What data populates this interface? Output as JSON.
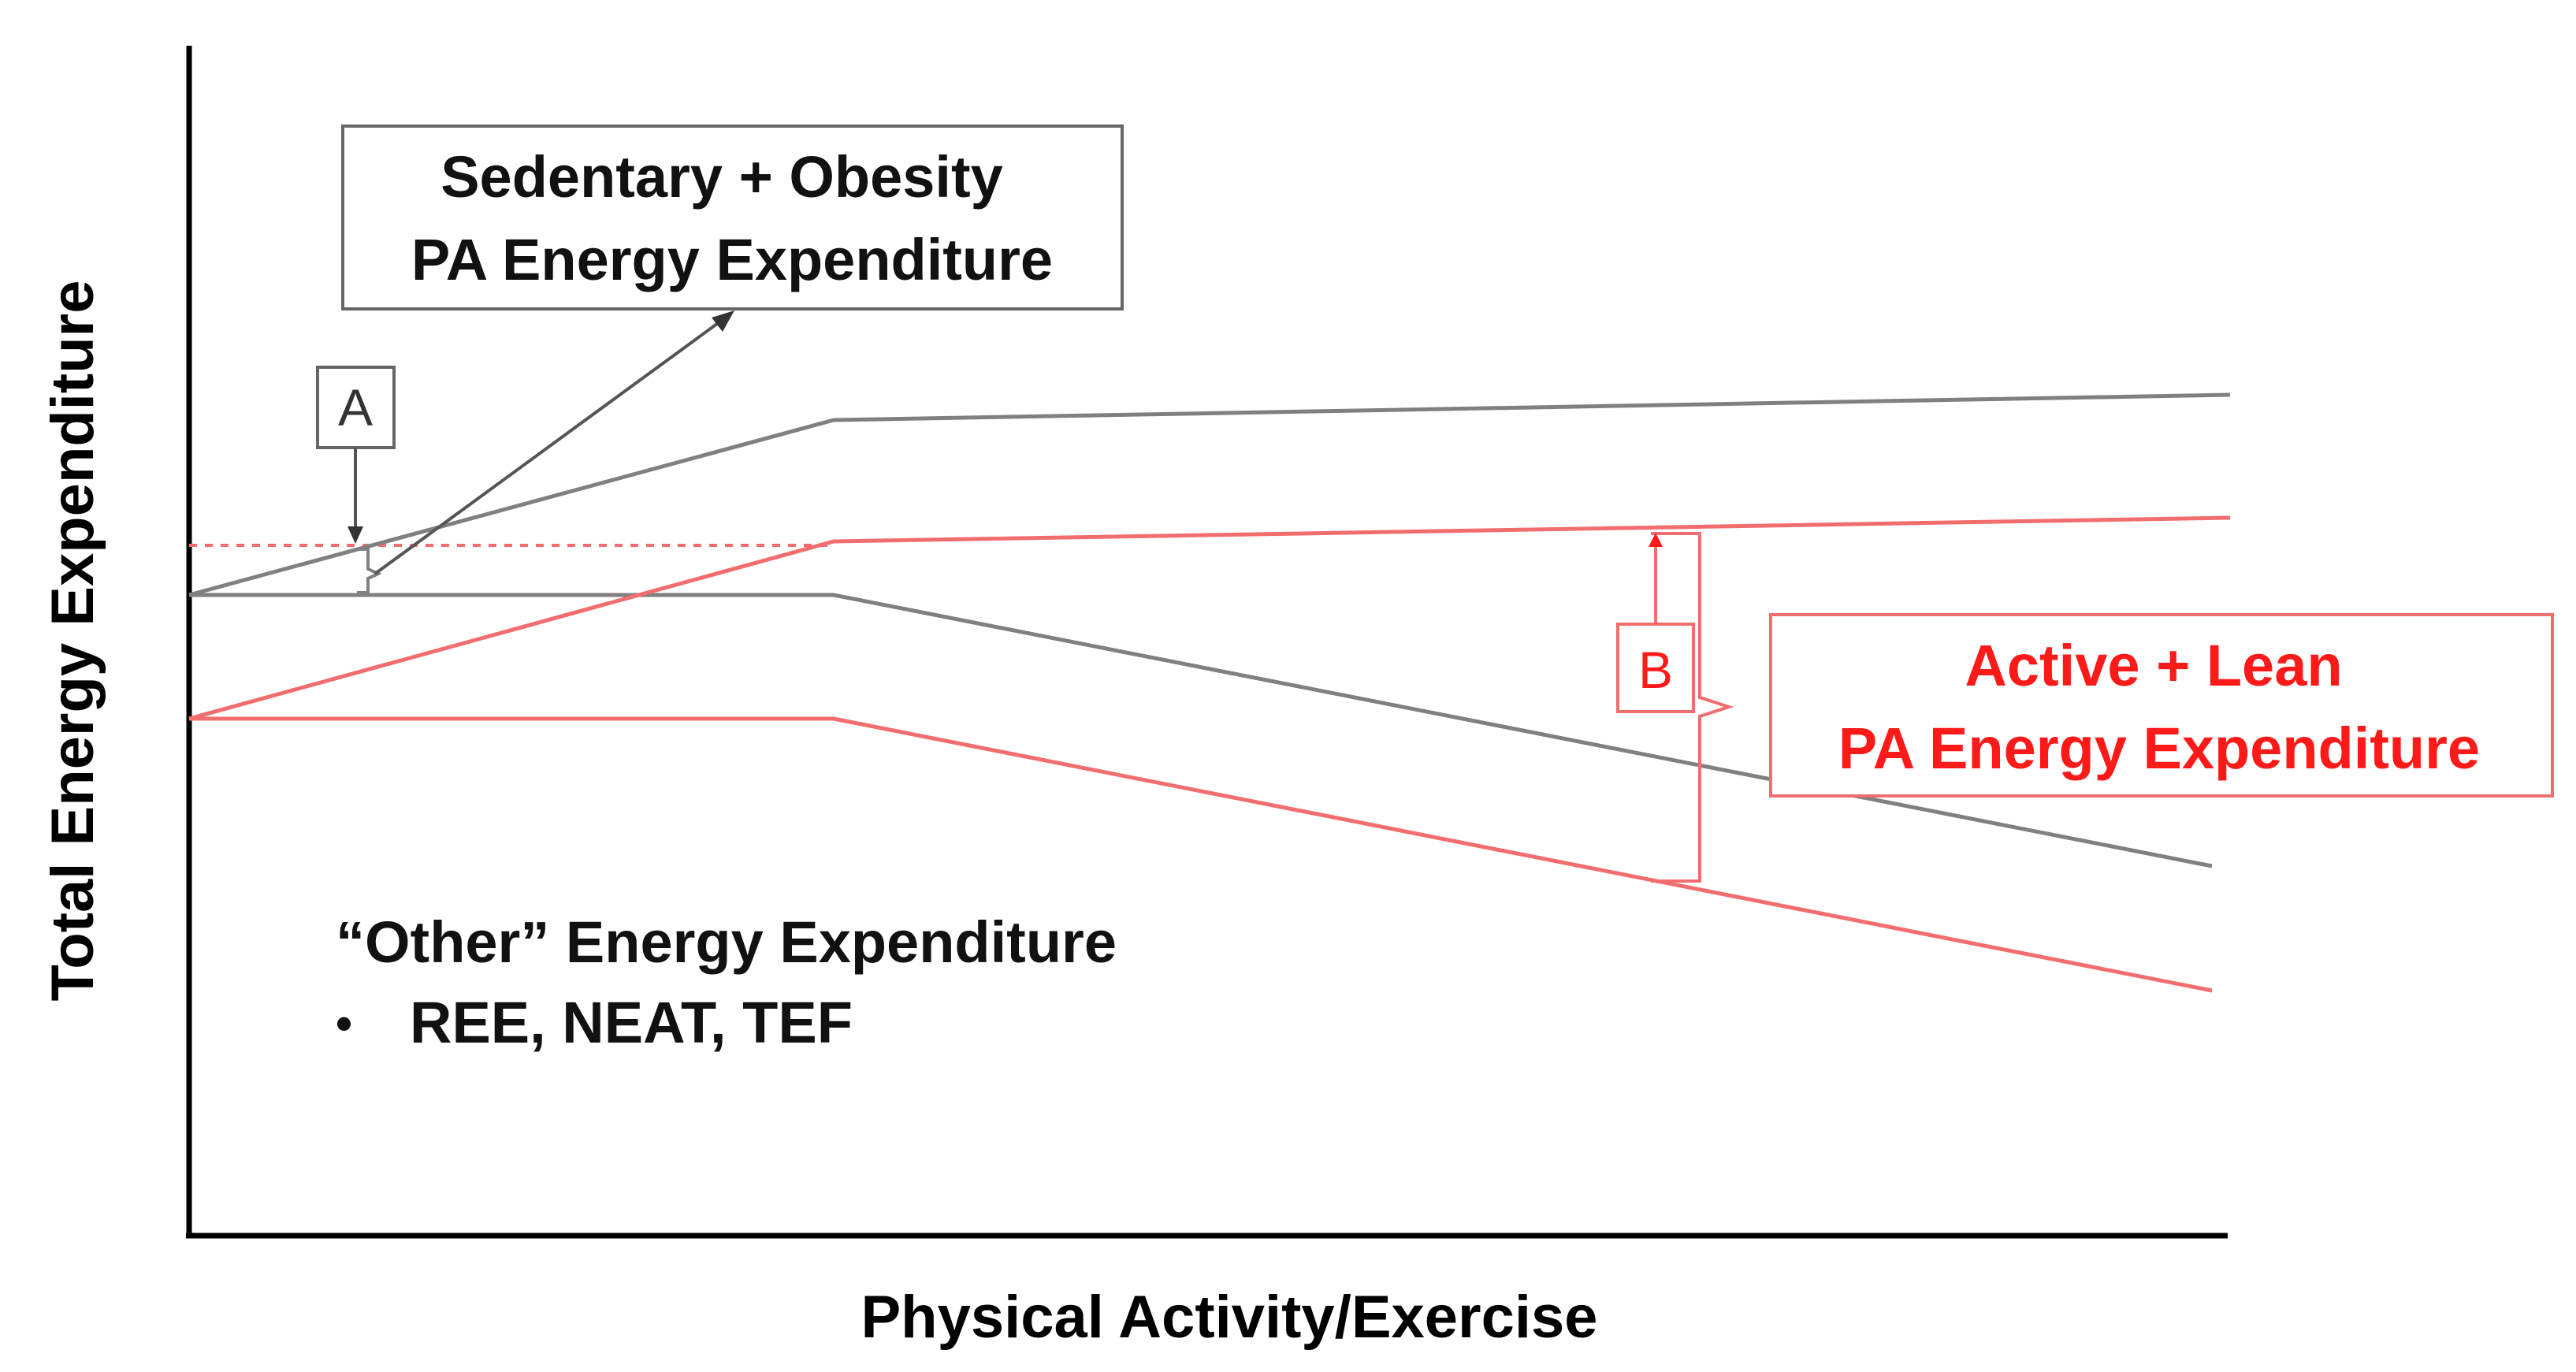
{
  "x_axis_label": "Physical Activity/Exercise",
  "y_axis_label": "Total Energy Expenditure",
  "sedentary_box": {
    "line1": "Sedentary + Obesity",
    "line2": "PA Energy Expenditure"
  },
  "active_box": {
    "line1": "Active + Lean",
    "line2": "PA Energy Expenditure"
  },
  "marker_a": "A",
  "marker_b": "B",
  "other_ee": {
    "title": "“Other” Energy Expenditure",
    "bullet": "•",
    "item": "REE, NEAT, TEF"
  },
  "colors": {
    "sedentary": "#808080",
    "active": "#f26d6d",
    "active_text": "#ff1a1a",
    "axis": "#000000"
  }
}
